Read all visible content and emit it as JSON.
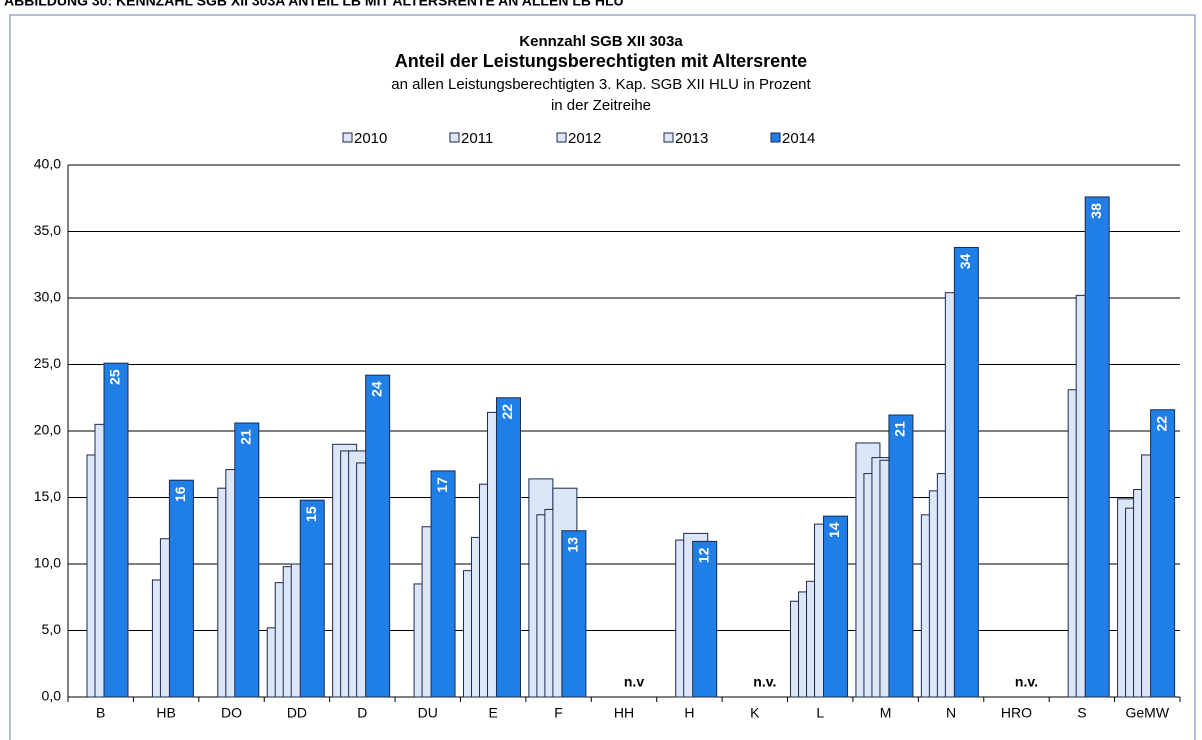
{
  "caption": "ABBILDUNG 30:      KENNZAHL SGB XII 303A ANTEIL LB MIT ALTERSRENTE AN ALLEN LB HLU",
  "chart_data": {
    "type": "bar",
    "title": "Kennzahl SGB XII 303a",
    "subtitle": "Anteil der Leistungsberechtigten mit Altersrente",
    "subtitle2": "an allen Leistungsberechtigten  3. Kap. SGB XII HLU in Prozent",
    "subtitle3": "in der Zeitreihe",
    "categories": [
      "B",
      "HB",
      "DO",
      "DD",
      "D",
      "DU",
      "E",
      "F",
      "HH",
      "H",
      "K",
      "L",
      "M",
      "N",
      "HRO",
      "S",
      "GeMW"
    ],
    "series": [
      {
        "name": "2010",
        "color": "#dde6f7",
        "values": [
          null,
          null,
          null,
          5.2,
          19.0,
          null,
          9.5,
          16.4,
          null,
          null,
          null,
          7.2,
          19.1,
          13.7,
          null,
          null,
          14.9
        ]
      },
      {
        "name": "2011",
        "color": "#dde6f7",
        "values": [
          null,
          null,
          null,
          8.6,
          18.5,
          null,
          12.0,
          13.7,
          null,
          null,
          null,
          7.9,
          16.8,
          15.5,
          null,
          null,
          14.2
        ]
      },
      {
        "name": "2012",
        "color": "#dde6f7",
        "values": [
          18.2,
          8.8,
          15.7,
          9.8,
          18.5,
          8.5,
          16.0,
          14.1,
          null,
          11.8,
          null,
          8.7,
          18.0,
          16.8,
          null,
          23.1,
          15.6
        ]
      },
      {
        "name": "2013",
        "color": "#dde6f7",
        "values": [
          20.5,
          11.9,
          17.1,
          10.0,
          17.6,
          12.8,
          21.4,
          15.7,
          null,
          12.3,
          null,
          13.0,
          17.8,
          30.4,
          null,
          30.2,
          18.2
        ]
      },
      {
        "name": "2014",
        "color": "#1f7fe6",
        "values": [
          25.1,
          16.3,
          20.6,
          14.8,
          24.2,
          17.0,
          22.5,
          12.5,
          null,
          11.7,
          null,
          13.6,
          21.2,
          33.8,
          null,
          37.6,
          21.6
        ],
        "value_labels": [
          "25",
          "16",
          "21",
          "15",
          "24",
          "17",
          "22",
          "13",
          "n.v",
          "12",
          "n.v.",
          "14",
          "21",
          "34",
          "n.v.",
          "38",
          "22"
        ]
      }
    ],
    "ylim": [
      0,
      40
    ],
    "yticks": [
      {
        "value": 0,
        "label": "0,0"
      },
      {
        "value": 5,
        "label": "5,0"
      },
      {
        "value": 10,
        "label": "10,0"
      },
      {
        "value": 15,
        "label": "15,0"
      },
      {
        "value": 20,
        "label": "20,0"
      },
      {
        "value": 25,
        "label": "25,0"
      },
      {
        "value": 30,
        "label": "30,0"
      },
      {
        "value": 35,
        "label": "35,0"
      },
      {
        "value": 40,
        "label": "40,0"
      }
    ],
    "grid": true
  }
}
